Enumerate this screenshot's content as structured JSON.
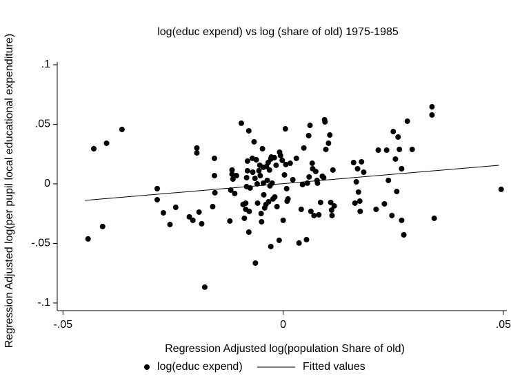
{
  "chart_data": {
    "type": "scatter",
    "title": "log(educ expend) vs log (share of old) 1975-1985",
    "xlabel": "Regression Adjusted log(population Share of old)",
    "ylabel": "Regression Adjusted log(per pupil local educational expenditure)",
    "xlim": [
      -0.0513,
      0.0508
    ],
    "ylim": [
      -0.1064,
      0.1023
    ],
    "xticks": [
      {
        "value": -0.05,
        "label": "-.05"
      },
      0,
      {
        "value": 0.05,
        "label": ".05"
      }
    ],
    "yticks": [
      {
        "value": -0.1,
        "label": "-.1"
      },
      {
        "value": -0.05,
        "label": "-.05"
      },
      0,
      {
        "value": 0.05,
        "label": ".05"
      },
      {
        "value": 0.1,
        "label": ".1"
      }
    ],
    "series": [
      {
        "name": "log(educ expend)",
        "type": "scatter",
        "color": "#000000",
        "x": [
          -0.0443,
          -0.041,
          -0.043,
          -0.0401,
          -0.0366,
          -0.0286,
          -0.0286,
          -0.0272,
          -0.0257,
          -0.0244,
          -0.0213,
          -0.0205,
          -0.0196,
          -0.0196,
          -0.0191,
          -0.0185,
          -0.0178,
          -0.0156,
          -0.0156,
          -0.0155,
          -0.0119,
          -0.0114,
          -0.0116,
          -0.011,
          -0.0106,
          -0.0095,
          -0.0091,
          -0.0088,
          -0.0085,
          -0.0083,
          -0.0081,
          -0.0081,
          -0.0078,
          -0.0083,
          -0.0085,
          -0.0078,
          -0.0077,
          -0.0075,
          -0.007,
          -0.0069,
          -0.0066,
          -0.0064,
          -0.0063,
          -0.0061,
          -0.0059,
          -0.0058,
          -0.0055,
          -0.0053,
          -0.0052,
          -0.005,
          -0.0049,
          -0.0047,
          -0.0045,
          -0.0045,
          -0.0044,
          -0.0042,
          -0.0039,
          -0.0038,
          -0.0036,
          -0.0034,
          -0.0033,
          -0.0031,
          -0.003,
          -0.0028,
          -0.0027,
          -0.0025,
          -0.0023,
          -0.0028,
          -0.002,
          -0.0019,
          -0.0016,
          -0.0014,
          -0.0009,
          -0.0008,
          -0.0006,
          -0.0002,
          0,
          0.0003,
          0.0005,
          0.0006,
          0.0008,
          0.0009,
          0.0011,
          0.0016,
          0.0022,
          0.003,
          0.0036,
          0.0041,
          0.0044,
          0.0047,
          0.0053,
          0.0055,
          0.0058,
          0.0059,
          0.0061,
          0.0063,
          0.0066,
          0.0067,
          0.007,
          0.0074,
          0.0077,
          0.0078,
          0.0081,
          0.0085,
          0.0089,
          0.0092,
          0.0094,
          0.0095,
          0.0097,
          0.0103,
          0.0106,
          0.0108,
          0.011,
          0.0111,
          0.0113,
          0.0116,
          0.016,
          0.0163,
          0.0166,
          0.0169,
          0.0171,
          0.0174,
          0.0178,
          0.0183,
          0.0175,
          0.0216,
          0.0211,
          0.023,
          0.0235,
          0.0239,
          0.0247,
          0.025,
          0.0255,
          0.0258,
          0.0261,
          0.0264,
          0.0269,
          0.0269,
          0.0282,
          0.0274,
          0.0293,
          0.0338,
          0.0338,
          0.0343,
          0.0495,
          -0.016,
          -0.0121,
          -0.0116
        ],
        "values": [
          -0.0462,
          -0.0358,
          0.0295,
          0.0341,
          0.0457,
          -0.004,
          -0.0133,
          -0.0243,
          -0.0341,
          -0.0197,
          -0.0277,
          -0.0306,
          0.0301,
          0.026,
          -0.0237,
          -0.0335,
          -0.0867,
          0.0214,
          0.0069,
          -0.0075,
          -0.0052,
          0.004,
          0.0116,
          -0.0081,
          0.0069,
          0.0509,
          -0.0173,
          -0.0289,
          -0.0162,
          0.0052,
          0.0191,
          0.011,
          0.0445,
          -0.0023,
          -0.0214,
          -0.0405,
          -0.0231,
          -0.0035,
          0.0214,
          0.0098,
          0.0353,
          0.0046,
          -0.0665,
          0.0202,
          0,
          -0.0162,
          0.011,
          0.0156,
          0.0069,
          -0.0249,
          -0.0318,
          0.0295,
          0.0139,
          0.0006,
          -0.0092,
          -0.0202,
          -0.0173,
          0.0145,
          0.0029,
          0.0179,
          -0.015,
          0.0116,
          -0.0017,
          0.0208,
          0.0225,
          0.0006,
          -0.0127,
          -0.0526,
          0.022,
          -0.011,
          0.0156,
          -0.0191,
          -0.0474,
          0.0266,
          0.0237,
          0.0197,
          -0.0306,
          0.0075,
          0.0462,
          0.0162,
          -0.004,
          -0.0145,
          -0.0127,
          0.0173,
          0.0035,
          0.0214,
          -0.0497,
          -0.0214,
          -0.0006,
          0.0301,
          -0.0468,
          0.0006,
          0.0405,
          0.0058,
          0.0491,
          -0.0231,
          0.0173,
          0.0127,
          -0.0266,
          0.0104,
          0.0029,
          0.0006,
          -0.026,
          -0.0156,
          0.0064,
          0.0052,
          0.0538,
          0.052,
          0.0289,
          0.0341,
          0.041,
          -0.0156,
          -0.022,
          -0.0266,
          0.0116,
          -0.0185,
          0.0179,
          -0.0162,
          0.0017,
          0.0127,
          -0.0069,
          -0.0145,
          0.0185,
          0.0098,
          -0.0231,
          0.0283,
          -0.0214,
          -0.0168,
          0.0283,
          0.0029,
          -0.0266,
          0.0439,
          0.0208,
          -0.0064,
          0.0393,
          0.0289,
          0.0127,
          -0.0306,
          0.0526,
          -0.0428,
          0.0289,
          0.0647,
          0.0578,
          -0.0289,
          -0.0046,
          -0.0191,
          -0.0312,
          0.0081
        ]
      },
      {
        "name": "Fitted values",
        "type": "line",
        "color": "#000000",
        "x": [
          -0.045,
          0.049
        ],
        "values": [
          -0.0139,
          0.0156
        ]
      }
    ]
  }
}
